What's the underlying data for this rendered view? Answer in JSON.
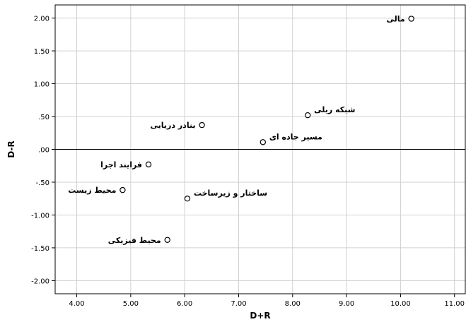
{
  "chart_data": {
    "type": "scatter",
    "xlabel": "D+R",
    "ylabel": "D-R",
    "xlim": [
      3.6,
      11.2
    ],
    "ylim": [
      -2.2,
      2.2
    ],
    "x_ticks": [
      {
        "value": 4,
        "label": "4.00"
      },
      {
        "value": 5,
        "label": "5.00"
      },
      {
        "value": 6,
        "label": "6.00"
      },
      {
        "value": 7,
        "label": "7.00"
      },
      {
        "value": 8,
        "label": "8.00"
      },
      {
        "value": 9,
        "label": "9.00"
      },
      {
        "value": 10,
        "label": "10.00"
      },
      {
        "value": 11,
        "label": "11.00"
      }
    ],
    "y_ticks": [
      {
        "value": 2,
        "label": "2.00"
      },
      {
        "value": 1.5,
        "label": "1.50"
      },
      {
        "value": 1,
        "label": "1.00"
      },
      {
        "value": 0.5,
        "label": ".50"
      },
      {
        "value": 0,
        "label": ".00"
      },
      {
        "value": -0.5,
        "label": "-.50"
      },
      {
        "value": -1,
        "label": "-1.00"
      },
      {
        "value": -1.5,
        "label": "-1.50"
      },
      {
        "value": -2,
        "label": "-2.00"
      }
    ],
    "grid": true,
    "reference_line_y": 0,
    "points": [
      {
        "label": "مالی",
        "x": 10.2,
        "y": 1.99,
        "label_side": "left"
      },
      {
        "label": "شبکه ریلی",
        "x": 8.28,
        "y": 0.52,
        "label_side": "right"
      },
      {
        "label": "بنادر دریایی",
        "x": 6.32,
        "y": 0.37,
        "label_side": "left"
      },
      {
        "label": "مسیر جاده ای",
        "x": 7.45,
        "y": 0.11,
        "label_side": "right"
      },
      {
        "label": "فرایند اجرا",
        "x": 5.33,
        "y": -0.23,
        "label_side": "left"
      },
      {
        "label": "محیط زیست",
        "x": 4.85,
        "y": -0.62,
        "label_side": "left"
      },
      {
        "label": "ساختار و زیرساخت",
        "x": 6.05,
        "y": -0.75,
        "label_side": "right"
      },
      {
        "label": "محیط فیزیکی",
        "x": 5.68,
        "y": -1.38,
        "label_side": "left"
      }
    ],
    "colors": {
      "grid": "#d0d0d0",
      "frame": "#000000",
      "marker": "#000000",
      "background": "#ffffff"
    }
  }
}
